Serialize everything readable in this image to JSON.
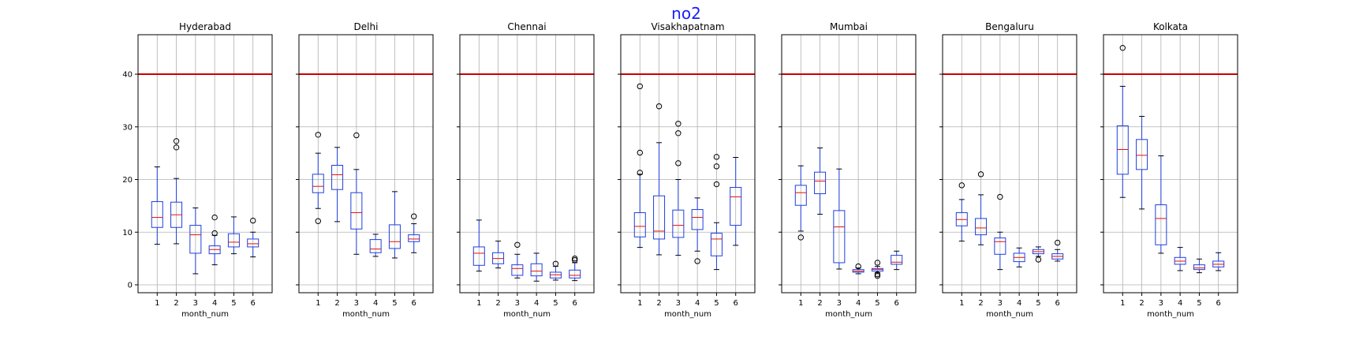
{
  "suptitle": "no2",
  "colors": {
    "box": "#1f3fe0",
    "median": "#e01010",
    "threshold": "#cc0000",
    "grid": "#b0b0b0",
    "title": "#1a1aff"
  },
  "chart_data": {
    "type": "boxplot",
    "threshold": 40,
    "ylim": [
      -1.5,
      47.5
    ],
    "yticks": [
      0,
      10,
      20,
      30,
      40
    ],
    "xlabel": "month_num",
    "categories": [
      "1",
      "2",
      "3",
      "4",
      "5",
      "6"
    ],
    "grid": true,
    "panels": [
      {
        "title": "Hyderabad",
        "boxes": [
          {
            "whislo": 7.7,
            "q1": 10.9,
            "med": 12.8,
            "q3": 15.8,
            "whishi": 22.4,
            "fliers": []
          },
          {
            "whislo": 7.8,
            "q1": 10.9,
            "med": 13.3,
            "q3": 15.7,
            "whishi": 20.2,
            "fliers": [
              26.1,
              27.3
            ]
          },
          {
            "whislo": 2.1,
            "q1": 6.0,
            "med": 9.5,
            "q3": 11.3,
            "whishi": 14.6,
            "fliers": []
          },
          {
            "whislo": 3.8,
            "q1": 5.9,
            "med": 6.7,
            "q3": 7.4,
            "whishi": 9.4,
            "fliers": [
              9.8,
              12.8
            ]
          },
          {
            "whislo": 5.9,
            "q1": 7.2,
            "med": 8.1,
            "q3": 9.7,
            "whishi": 12.9,
            "fliers": []
          },
          {
            "whislo": 5.3,
            "q1": 7.2,
            "med": 7.8,
            "q3": 8.7,
            "whishi": 10.0,
            "fliers": [
              12.2
            ]
          }
        ]
      },
      {
        "title": "Delhi",
        "boxes": [
          {
            "whislo": 14.5,
            "q1": 17.5,
            "med": 18.7,
            "q3": 21.0,
            "whishi": 25.0,
            "fliers": [
              12.1,
              28.5
            ]
          },
          {
            "whislo": 12.0,
            "q1": 18.1,
            "med": 20.9,
            "q3": 22.7,
            "whishi": 26.1,
            "fliers": []
          },
          {
            "whislo": 5.8,
            "q1": 10.6,
            "med": 13.7,
            "q3": 17.5,
            "whishi": 21.9,
            "fliers": [
              28.4
            ]
          },
          {
            "whislo": 5.4,
            "q1": 6.1,
            "med": 6.8,
            "q3": 8.6,
            "whishi": 9.6,
            "fliers": []
          },
          {
            "whislo": 5.1,
            "q1": 6.9,
            "med": 8.2,
            "q3": 11.4,
            "whishi": 17.7,
            "fliers": []
          },
          {
            "whislo": 6.1,
            "q1": 8.2,
            "med": 8.7,
            "q3": 9.5,
            "whishi": 11.6,
            "fliers": [
              13.0
            ]
          }
        ]
      },
      {
        "title": "Chennai",
        "boxes": [
          {
            "whislo": 2.6,
            "q1": 3.7,
            "med": 6.0,
            "q3": 7.2,
            "whishi": 12.3,
            "fliers": []
          },
          {
            "whislo": 3.2,
            "q1": 4.0,
            "med": 5.0,
            "q3": 6.1,
            "whishi": 8.3,
            "fliers": []
          },
          {
            "whislo": 1.3,
            "q1": 1.8,
            "med": 3.1,
            "q3": 3.8,
            "whishi": 5.8,
            "fliers": [
              7.6
            ]
          },
          {
            "whislo": 0.7,
            "q1": 1.7,
            "med": 2.6,
            "q3": 4.0,
            "whishi": 6.0,
            "fliers": []
          },
          {
            "whislo": 0.9,
            "q1": 1.3,
            "med": 1.9,
            "q3": 2.4,
            "whishi": 3.5,
            "fliers": [
              4.0
            ]
          },
          {
            "whislo": 0.8,
            "q1": 1.3,
            "med": 1.8,
            "q3": 2.8,
            "whishi": 4.2,
            "fliers": [
              4.7,
              5.0
            ]
          }
        ]
      },
      {
        "title": "Visakhapatnam",
        "boxes": [
          {
            "whislo": 7.1,
            "q1": 9.1,
            "med": 11.1,
            "q3": 13.7,
            "whishi": 21.0,
            "fliers": [
              21.3,
              25.1,
              37.7
            ]
          },
          {
            "whislo": 5.7,
            "q1": 8.7,
            "med": 10.2,
            "q3": 16.9,
            "whishi": 27.0,
            "fliers": [
              33.9
            ]
          },
          {
            "whislo": 5.6,
            "q1": 9.0,
            "med": 11.3,
            "q3": 14.2,
            "whishi": 20.0,
            "fliers": [
              23.1,
              28.8,
              30.6
            ]
          },
          {
            "whislo": 6.4,
            "q1": 10.5,
            "med": 12.8,
            "q3": 14.3,
            "whishi": 16.5,
            "fliers": [
              4.5
            ]
          },
          {
            "whislo": 2.9,
            "q1": 5.5,
            "med": 8.7,
            "q3": 9.8,
            "whishi": 11.8,
            "fliers": [
              19.1,
              22.5,
              24.3
            ]
          },
          {
            "whislo": 7.5,
            "q1": 11.3,
            "med": 16.7,
            "q3": 18.5,
            "whishi": 24.2,
            "fliers": []
          }
        ]
      },
      {
        "title": "Mumbai",
        "boxes": [
          {
            "whislo": 10.2,
            "q1": 15.1,
            "med": 17.5,
            "q3": 18.9,
            "whishi": 22.6,
            "fliers": [
              9.0
            ]
          },
          {
            "whislo": 13.4,
            "q1": 17.3,
            "med": 19.7,
            "q3": 21.4,
            "whishi": 26.0,
            "fliers": []
          },
          {
            "whislo": 3.0,
            "q1": 4.2,
            "med": 11.0,
            "q3": 14.1,
            "whishi": 22.0,
            "fliers": []
          },
          {
            "whislo": 2.1,
            "q1": 2.4,
            "med": 2.6,
            "q3": 2.9,
            "whishi": 3.2,
            "fliers": [
              3.5
            ]
          },
          {
            "whislo": 2.3,
            "q1": 2.6,
            "med": 2.9,
            "q3": 3.1,
            "whishi": 3.5,
            "fliers": [
              1.7,
              2.0,
              4.2
            ]
          },
          {
            "whislo": 2.9,
            "q1": 3.9,
            "med": 4.3,
            "q3": 5.6,
            "whishi": 6.4,
            "fliers": []
          }
        ]
      },
      {
        "title": "Bengaluru",
        "boxes": [
          {
            "whislo": 8.3,
            "q1": 11.2,
            "med": 12.4,
            "q3": 13.7,
            "whishi": 16.2,
            "fliers": [
              18.9
            ]
          },
          {
            "whislo": 7.6,
            "q1": 9.5,
            "med": 10.8,
            "q3": 12.6,
            "whishi": 17.1,
            "fliers": [
              21.0
            ]
          },
          {
            "whislo": 2.9,
            "q1": 5.8,
            "med": 8.2,
            "q3": 8.9,
            "whishi": 10.0,
            "fliers": [
              16.7
            ]
          },
          {
            "whislo": 3.4,
            "q1": 4.4,
            "med": 5.2,
            "q3": 6.0,
            "whishi": 7.0,
            "fliers": []
          },
          {
            "whislo": 5.4,
            "q1": 5.9,
            "med": 6.3,
            "q3": 6.7,
            "whishi": 7.2,
            "fliers": [
              4.8
            ]
          },
          {
            "whislo": 4.5,
            "q1": 4.9,
            "med": 5.4,
            "q3": 5.9,
            "whishi": 6.7,
            "fliers": [
              8.0
            ]
          }
        ]
      },
      {
        "title": "Kolkata",
        "boxes": [
          {
            "whislo": 16.6,
            "q1": 21.0,
            "med": 25.7,
            "q3": 30.2,
            "whishi": 37.7,
            "fliers": [
              45.0
            ]
          },
          {
            "whislo": 14.4,
            "q1": 21.9,
            "med": 24.6,
            "q3": 27.6,
            "whishi": 32.0,
            "fliers": []
          },
          {
            "whislo": 6.0,
            "q1": 7.6,
            "med": 12.6,
            "q3": 15.2,
            "whishi": 24.5,
            "fliers": []
          },
          {
            "whislo": 2.7,
            "q1": 3.9,
            "med": 4.5,
            "q3": 5.2,
            "whishi": 7.1,
            "fliers": []
          },
          {
            "whislo": 2.3,
            "q1": 2.9,
            "med": 3.2,
            "q3": 3.8,
            "whishi": 4.9,
            "fliers": []
          },
          {
            "whislo": 2.7,
            "q1": 3.4,
            "med": 3.9,
            "q3": 4.5,
            "whishi": 6.1,
            "fliers": []
          }
        ]
      }
    ]
  }
}
